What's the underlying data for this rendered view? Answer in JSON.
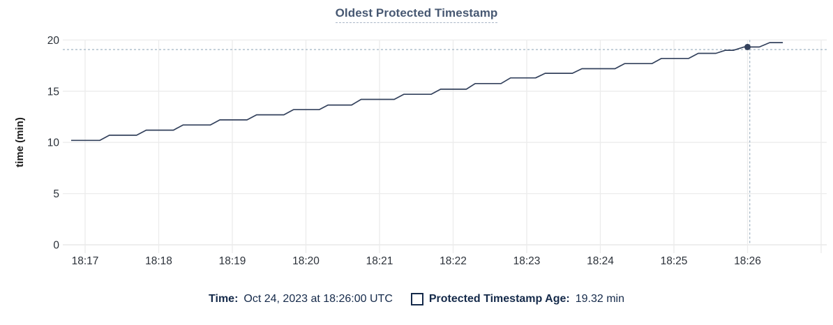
{
  "title": "Oldest Protected Timestamp",
  "legend": {
    "time_label": "Time:",
    "time_value": "Oct 24, 2023 at 18:26:00 UTC",
    "series_label": "Protected Timestamp Age:",
    "series_value": "19.32 min"
  },
  "colors": {
    "title_text": "#475872",
    "title_underline": "#a9b6c6",
    "legend_text": "#152a4a",
    "axis_text": "#2b3139",
    "axis_title_text": "#1c1c1c",
    "grid": "#ececec",
    "axis_line": "#e3e3e3",
    "series_line": "#33415c",
    "crosshair": "#a9bac8",
    "background": "#ffffff"
  },
  "chart_data": {
    "type": "line",
    "title": "Oldest Protected Timestamp",
    "xlabel": "",
    "ylabel": "time (min)",
    "ylim": [
      0,
      20
    ],
    "yticks": [
      0,
      5,
      10,
      15,
      20
    ],
    "xticks": [
      "18:17",
      "18:18",
      "18:19",
      "18:20",
      "18:21",
      "18:22",
      "18:23",
      "18:24",
      "18:25",
      "18:26"
    ],
    "x_unit": "minutes after 18:17 UTC",
    "grid": true,
    "legend_position": "bottom",
    "series": [
      {
        "name": "Protected Timestamp Age",
        "unit": "min",
        "style": "step-ramp staircase, rises ~0.5 min every ~30 s",
        "points": [
          [
            -0.19,
            10.2
          ],
          [
            0.2,
            10.2
          ],
          [
            0.33,
            10.7
          ],
          [
            0.7,
            10.7
          ],
          [
            0.83,
            11.2
          ],
          [
            1.2,
            11.2
          ],
          [
            1.33,
            11.7
          ],
          [
            1.7,
            11.7
          ],
          [
            1.83,
            12.2
          ],
          [
            2.2,
            12.2
          ],
          [
            2.33,
            12.7
          ],
          [
            2.7,
            12.7
          ],
          [
            2.83,
            13.2
          ],
          [
            3.18,
            13.2
          ],
          [
            3.3,
            13.65
          ],
          [
            3.62,
            13.65
          ],
          [
            3.75,
            14.2
          ],
          [
            4.2,
            14.2
          ],
          [
            4.33,
            14.7
          ],
          [
            4.7,
            14.7
          ],
          [
            4.83,
            15.2
          ],
          [
            5.18,
            15.2
          ],
          [
            5.3,
            15.75
          ],
          [
            5.65,
            15.75
          ],
          [
            5.78,
            16.3
          ],
          [
            6.12,
            16.3
          ],
          [
            6.25,
            16.75
          ],
          [
            6.62,
            16.75
          ],
          [
            6.75,
            17.2
          ],
          [
            7.2,
            17.2
          ],
          [
            7.33,
            17.7
          ],
          [
            7.7,
            17.7
          ],
          [
            7.83,
            18.2
          ],
          [
            8.2,
            18.2
          ],
          [
            8.33,
            18.7
          ],
          [
            8.57,
            18.7
          ],
          [
            8.7,
            19.0
          ],
          [
            8.81,
            19.0
          ],
          [
            8.95,
            19.32
          ],
          [
            9.16,
            19.32
          ],
          [
            9.3,
            19.75
          ],
          [
            9.48,
            19.75
          ]
        ]
      }
    ],
    "highlight_point": {
      "time": "18:26:00",
      "t": 9.0,
      "value": 19.32
    },
    "crosshair": {
      "t": 9.03,
      "value": 19.07
    }
  }
}
